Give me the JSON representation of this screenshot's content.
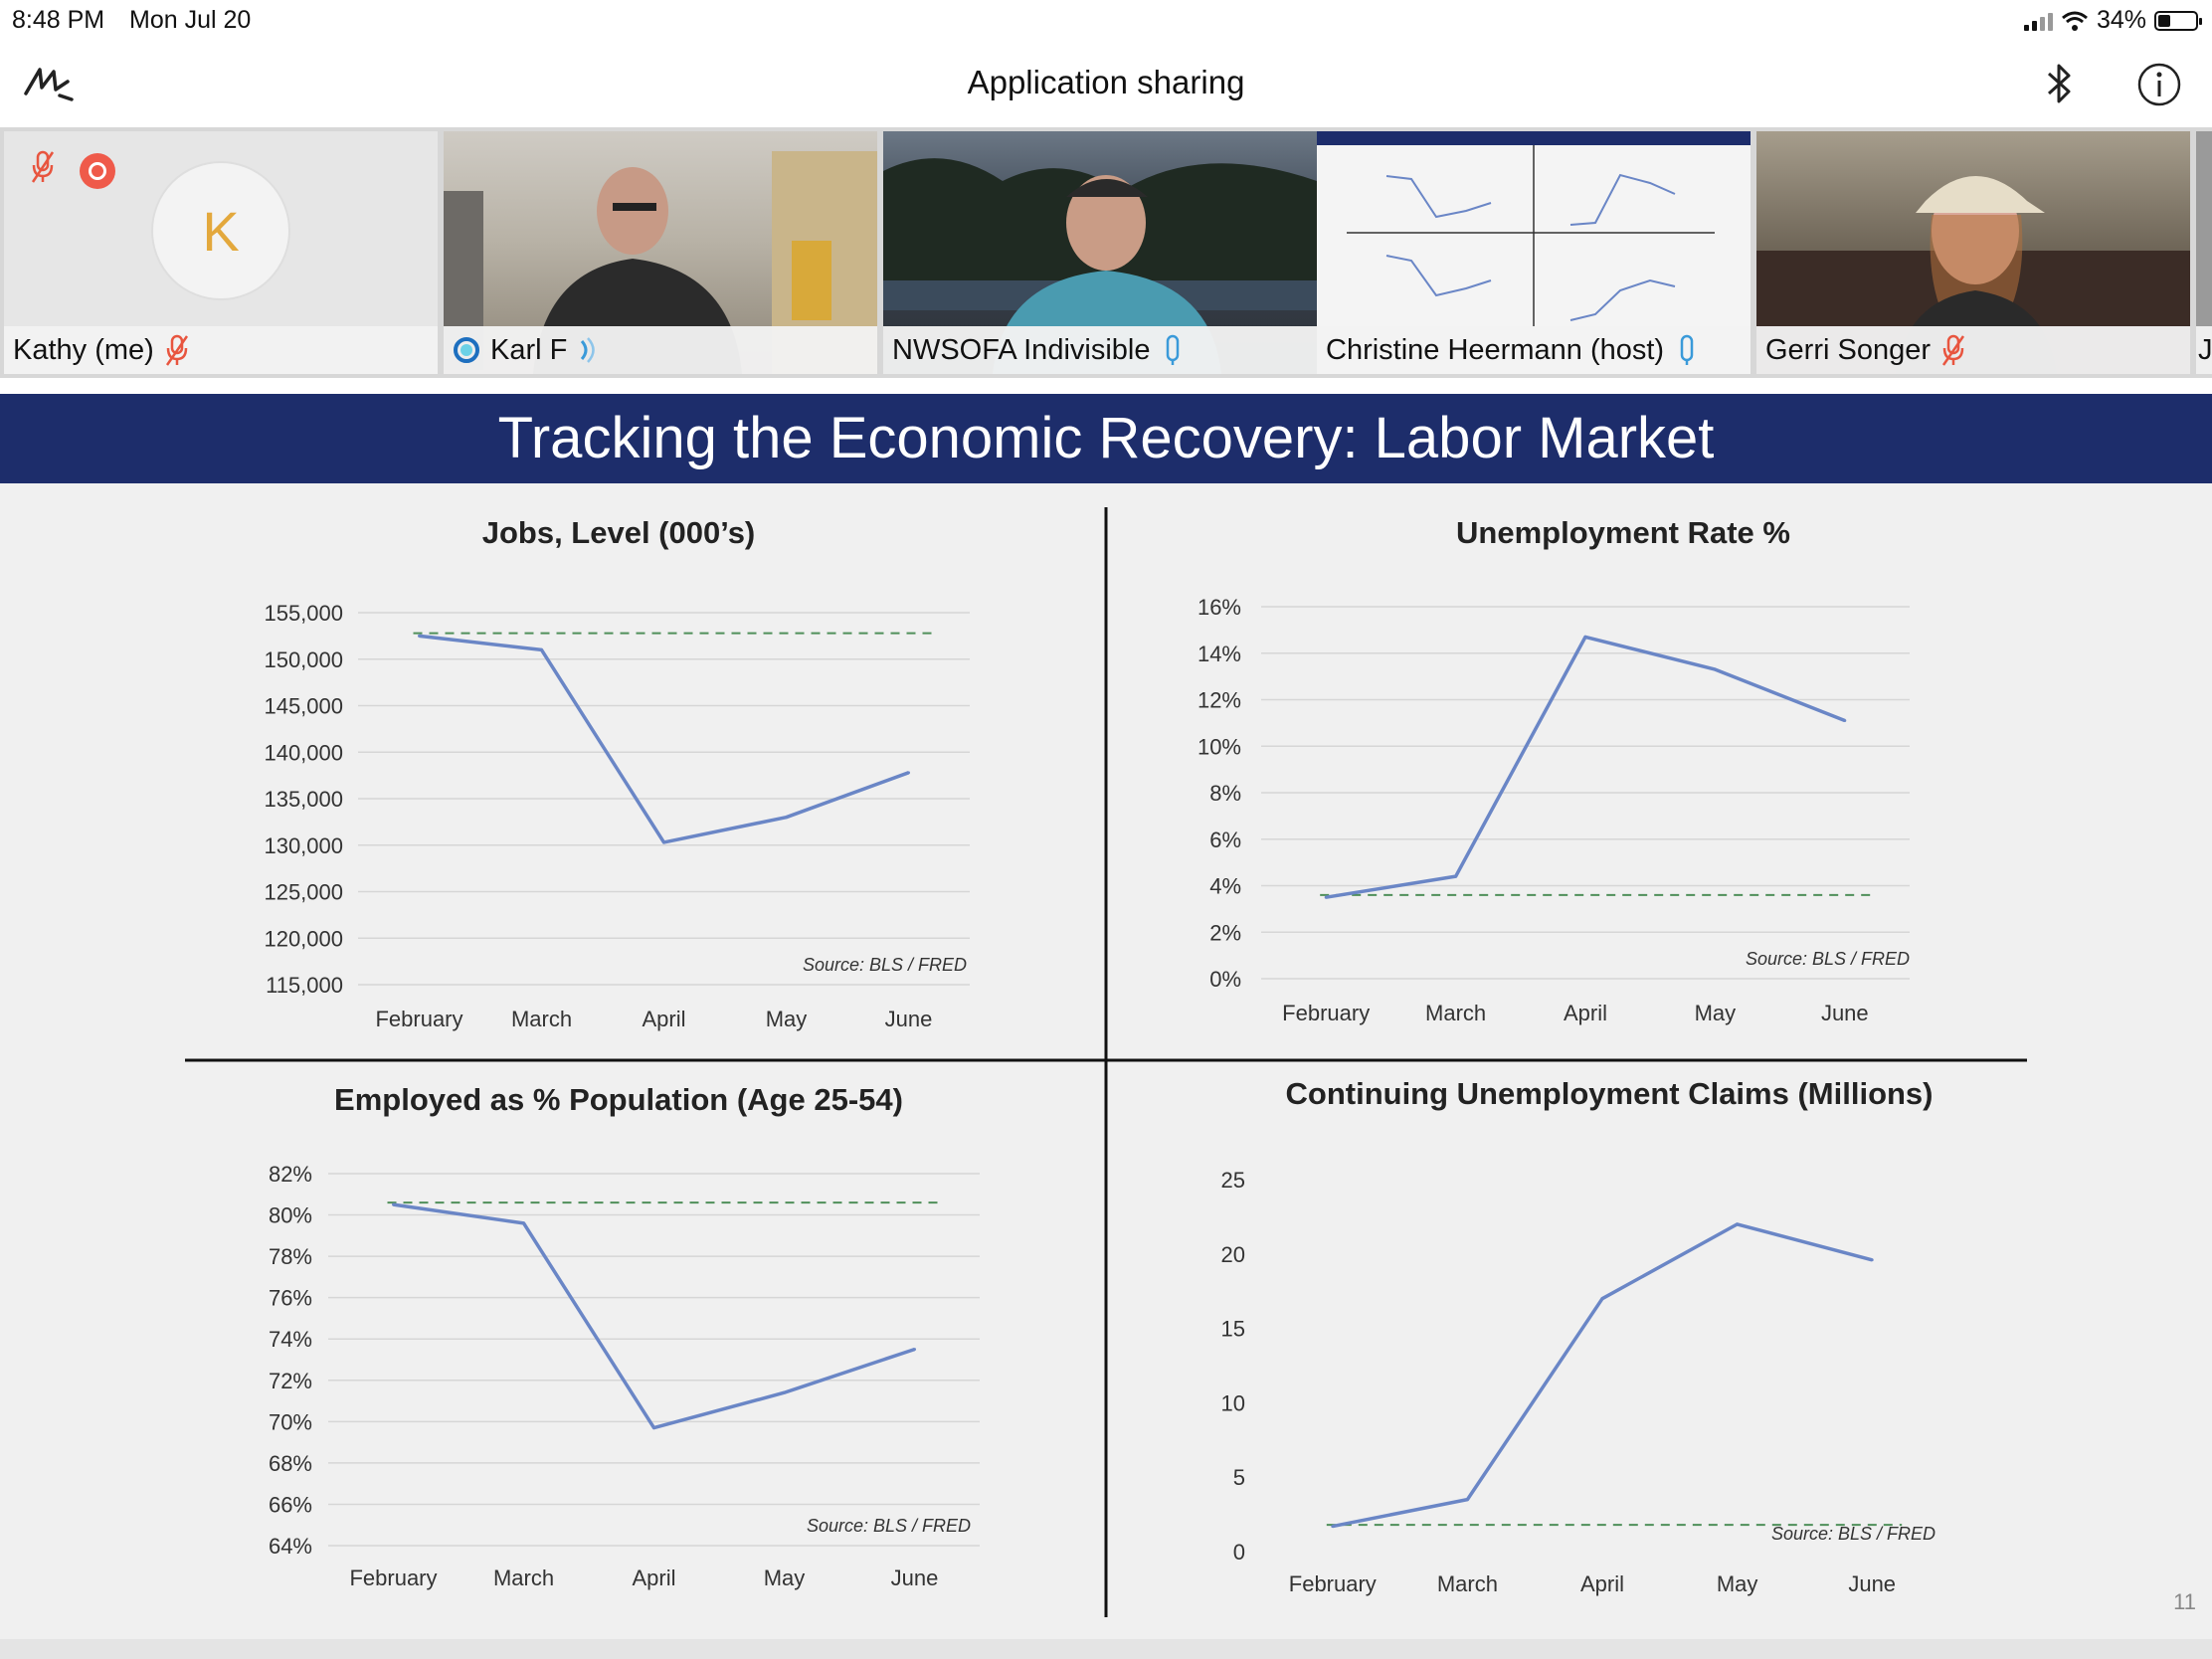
{
  "status_bar": {
    "time": "8:48 PM",
    "date": "Mon Jul 20",
    "battery": "34%",
    "battery_level": 0.34
  },
  "app": {
    "title": "Application sharing"
  },
  "participants": [
    {
      "name": "Kathy (me)",
      "avatar_letter": "K",
      "mic": "muted",
      "recording": true
    },
    {
      "name": "Karl F",
      "mic": "speaking"
    },
    {
      "name": "NWSOFA Indivisible",
      "mic": "on"
    },
    {
      "name": "Christine Heermann (host)",
      "mic": "on"
    },
    {
      "name": "Gerri Songer",
      "mic": "muted"
    },
    {
      "name": "J"
    }
  ],
  "slide": {
    "title": "Tracking the Economic Recovery:  Labor Market",
    "page_number": "11"
  },
  "chart_data": [
    {
      "type": "line",
      "title": "Jobs, Level (000’s)",
      "categories": [
        "February",
        "March",
        "April",
        "May",
        "June"
      ],
      "values": [
        152500,
        151000,
        130300,
        133000,
        137800
      ],
      "y_tick_labels": [
        "155,000",
        "150,000",
        "145,000",
        "140,000",
        "135,000",
        "130,000",
        "125,000",
        "120,000",
        "115,000"
      ],
      "ylim": [
        115000,
        155000
      ],
      "reference_value": 152800,
      "source": "Source:  BLS / FRED",
      "grid": true
    },
    {
      "type": "line",
      "title": "Unemployment Rate %",
      "categories": [
        "February",
        "March",
        "April",
        "May",
        "June"
      ],
      "values": [
        3.5,
        4.4,
        14.7,
        13.3,
        11.1
      ],
      "y_tick_labels": [
        "16%",
        "14%",
        "12%",
        "10%",
        "8%",
        "6%",
        "4%",
        "2%",
        "0%"
      ],
      "ylim": [
        0,
        16
      ],
      "reference_value": 3.6,
      "source": "Source:  BLS / FRED",
      "grid": true
    },
    {
      "type": "line",
      "title": "Employed as % Population (Age 25-54)",
      "categories": [
        "February",
        "March",
        "April",
        "May",
        "June"
      ],
      "values": [
        80.5,
        79.6,
        69.7,
        71.4,
        73.5
      ],
      "y_tick_labels": [
        "82%",
        "80%",
        "78%",
        "76%",
        "74%",
        "72%",
        "70%",
        "68%",
        "66%",
        "64%"
      ],
      "ylim": [
        64,
        82
      ],
      "reference_value": 80.6,
      "source": "Source:  BLS / FRED",
      "grid": true
    },
    {
      "type": "line",
      "title": "Continuing Unemployment Claims (Millions)",
      "categories": [
        "February",
        "March",
        "April",
        "May",
        "June"
      ],
      "values": [
        1.7,
        3.5,
        17.0,
        22.0,
        19.6
      ],
      "y_tick_labels": [
        "25",
        "20",
        "15",
        "10",
        "5",
        "0"
      ],
      "ylim": [
        0,
        25
      ],
      "reference_value": 1.8,
      "source": "Source:  BLS / FRED",
      "grid": false
    }
  ],
  "colors": {
    "banner": "#1d2d6b",
    "series_line": "#6a86c6",
    "reference_line": "#4f8f5a",
    "muted_mic": "#e8553f",
    "active_mic": "#3a9ad9"
  }
}
